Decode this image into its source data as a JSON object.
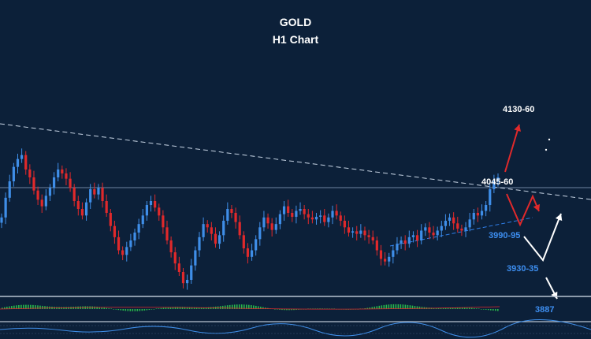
{
  "chart_data": {
    "type": "candlestick",
    "title": "GOLD",
    "subtitle": "H1 Chart",
    "price_range": [
      3860,
      4160
    ],
    "candles": [
      3985,
      4015,
      4040,
      4062,
      4074,
      4080,
      4058,
      4046,
      4026,
      4012,
      4002,
      4018,
      4030,
      4046,
      4058,
      4052,
      4044,
      4030,
      4010,
      3998,
      3988,
      4008,
      4028,
      4020,
      4030,
      4010,
      3992,
      3972,
      3955,
      3935,
      3928,
      3940,
      3950,
      3962,
      3975,
      3988,
      4004,
      4010,
      4000,
      3988,
      3970,
      3950,
      3932,
      3915,
      3902,
      3885,
      3890,
      3912,
      3935,
      3955,
      3975,
      3970,
      3960,
      3945,
      3958,
      3980,
      3998,
      3992,
      3978,
      3958,
      3938,
      3925,
      3935,
      3952,
      3970,
      3985,
      3976,
      3966,
      3975,
      3990,
      4002,
      3992,
      3986,
      3995,
      3998,
      3990,
      3985,
      3982,
      3986,
      3988,
      3978,
      3985,
      3995,
      3988,
      3980,
      3970,
      3962,
      3964,
      3960,
      3965,
      3958,
      3955,
      3950,
      3935,
      3922,
      3918,
      3925,
      3935,
      3945,
      3950,
      3945,
      3955,
      3958,
      3950,
      3965,
      3970,
      3962,
      3958,
      3965,
      3972,
      3980,
      3985,
      3976,
      3968,
      3965,
      3970,
      3982,
      3992,
      3988,
      3995,
      4004,
      4028,
      4040,
      4046
    ],
    "levels": [
      {
        "label": "4045-60",
        "value": 4050
      }
    ],
    "targets": [
      {
        "label": "4130-60",
        "color": "#ffffff"
      },
      {
        "label": "4045-60",
        "color": "#ffffff"
      },
      {
        "label": "3990-95",
        "color": "#3d8ef0"
      },
      {
        "label": "3930-35",
        "color": "#3d8ef0"
      },
      {
        "label": "3887",
        "color": "#3d8ef0"
      }
    ],
    "scenarios": [
      {
        "direction": "up",
        "color": "#e0292b",
        "to": 4145
      },
      {
        "direction": "down-then-up",
        "color": "#e0292b",
        "to": 4010
      },
      {
        "direction": "down-then-up-then-down",
        "color": "#ffffff",
        "to": 3887
      }
    ],
    "indicator": {
      "type": "histogram",
      "color": "#27b84b"
    }
  }
}
